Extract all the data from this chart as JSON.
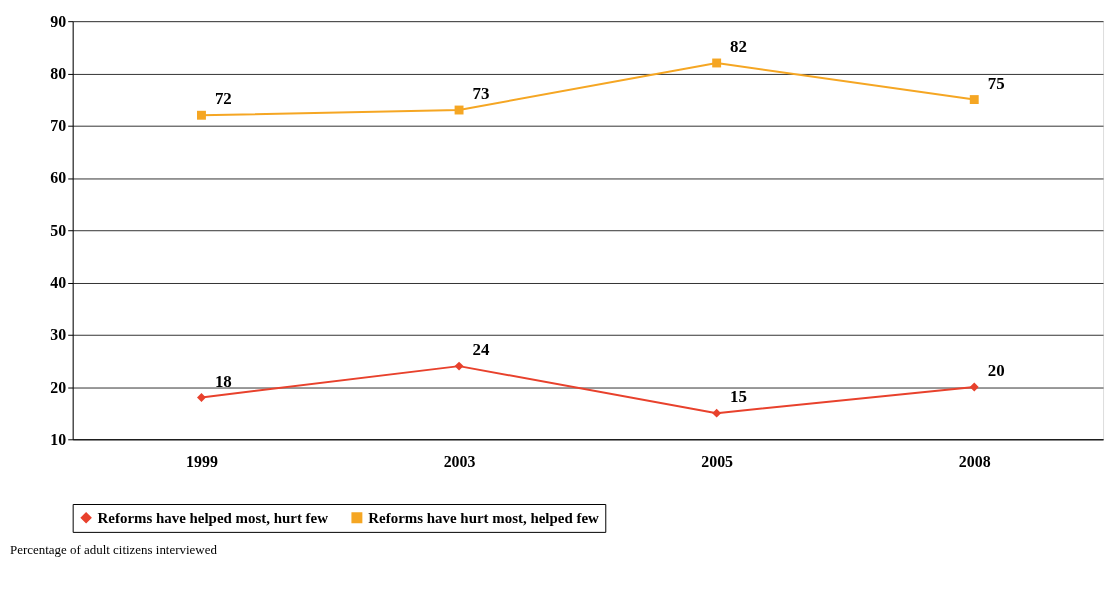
{
  "chart_data": {
    "type": "line",
    "categories": [
      "1999",
      "2003",
      "2005",
      "2008"
    ],
    "series": [
      {
        "name": "Reforms have helped most, hurt few",
        "color": "#e8412c",
        "marker": "diamond",
        "values": [
          18,
          24,
          15,
          20
        ]
      },
      {
        "name": "Reforms have hurt most, helped few",
        "color": "#f5a623",
        "marker": "square",
        "values": [
          72,
          73,
          82,
          75
        ]
      }
    ],
    "ylim": [
      10,
      90
    ],
    "yticks": [
      10,
      20,
      30,
      40,
      50,
      60,
      70,
      80,
      90
    ],
    "grid": "y",
    "legend": "bottom",
    "data_labels": true,
    "line_style": "solid",
    "annotations": [
      "Percentage of adult citizens interviewed"
    ]
  }
}
